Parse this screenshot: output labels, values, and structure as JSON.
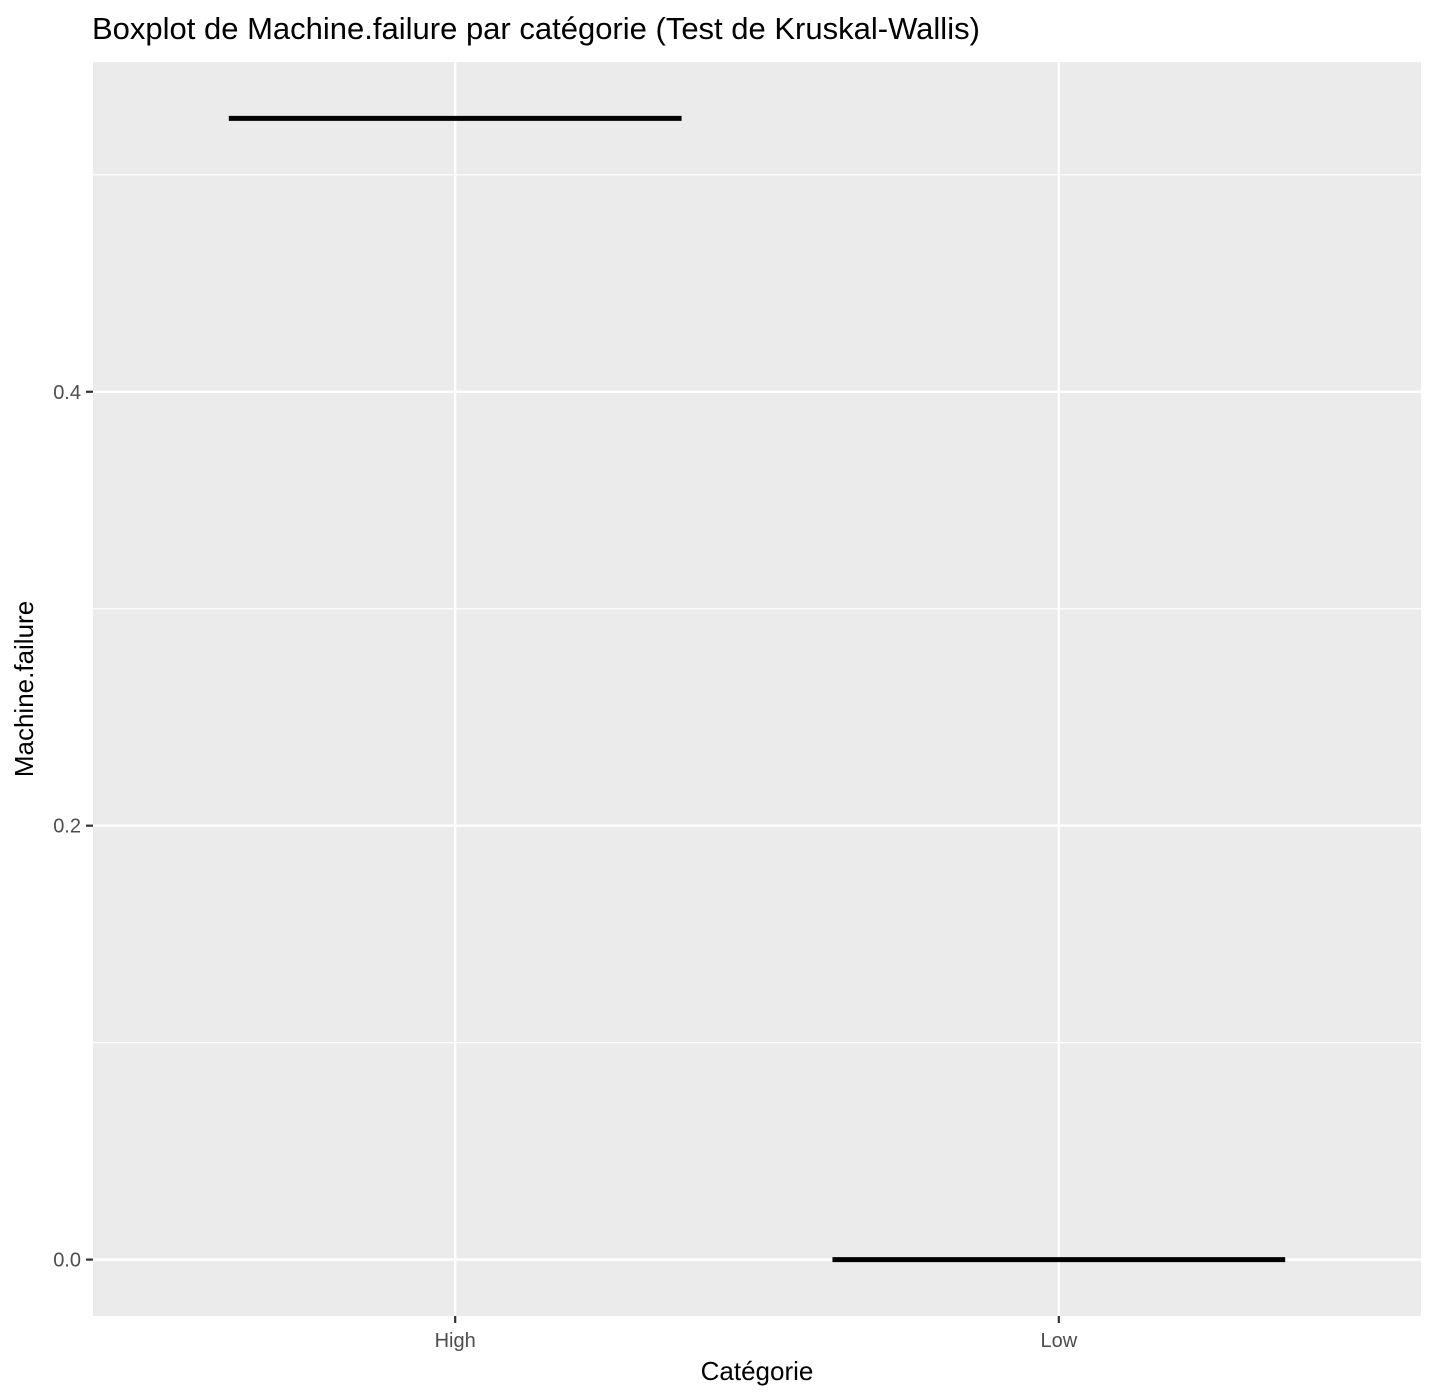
{
  "chart_data": {
    "type": "boxplot",
    "title": "Boxplot de Machine.failure par catégorie (Test de Kruskal-Wallis)",
    "xlabel": "Catégorie",
    "ylabel": "Machine.failure",
    "categories": [
      "High",
      "Low"
    ],
    "values": [
      0.526,
      0.0
    ],
    "y_ticks": [
      {
        "value": 0.0,
        "label": "0.0"
      },
      {
        "value": 0.2,
        "label": "0.2"
      },
      {
        "value": 0.4,
        "label": "0.4"
      }
    ],
    "ylim": [
      -0.026,
      0.552
    ],
    "grid": true,
    "colors": {
      "panel_background": "#ebebeb",
      "grid": "#ffffff",
      "median_line": "#000000",
      "tick": "#333333"
    }
  }
}
